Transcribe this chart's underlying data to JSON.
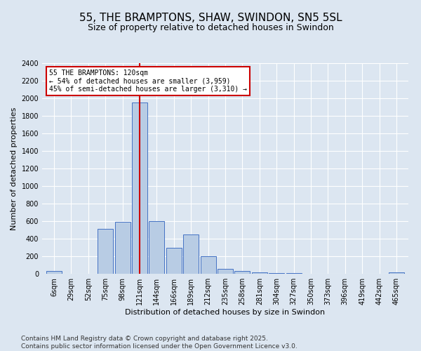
{
  "title": "55, THE BRAMPTONS, SHAW, SWINDON, SN5 5SL",
  "subtitle": "Size of property relative to detached houses in Swindon",
  "xlabel": "Distribution of detached houses by size in Swindon",
  "ylabel": "Number of detached properties",
  "footer_line1": "Contains HM Land Registry data © Crown copyright and database right 2025.",
  "footer_line2": "Contains public sector information licensed under the Open Government Licence v3.0.",
  "categories": [
    "6sqm",
    "29sqm",
    "52sqm",
    "75sqm",
    "98sqm",
    "121sqm",
    "144sqm",
    "166sqm",
    "189sqm",
    "212sqm",
    "235sqm",
    "258sqm",
    "281sqm",
    "304sqm",
    "327sqm",
    "350sqm",
    "373sqm",
    "396sqm",
    "419sqm",
    "442sqm",
    "465sqm"
  ],
  "values": [
    30,
    0,
    0,
    510,
    590,
    1950,
    600,
    300,
    450,
    200,
    60,
    30,
    20,
    10,
    10,
    0,
    0,
    0,
    0,
    0,
    20
  ],
  "bar_color": "#b8cce4",
  "bar_edge_color": "#4472c4",
  "highlight_bar_index": 5,
  "highlight_line_color": "#cc0000",
  "ylim": [
    0,
    2400
  ],
  "yticks": [
    0,
    200,
    400,
    600,
    800,
    1000,
    1200,
    1400,
    1600,
    1800,
    2000,
    2200,
    2400
  ],
  "annotation_box_text": "55 THE BRAMPTONS: 120sqm\n← 54% of detached houses are smaller (3,959)\n45% of semi-detached houses are larger (3,310) →",
  "annotation_box_color": "#cc0000",
  "bg_color": "#dce6f1",
  "plot_bg_color": "#dce6f1",
  "grid_color": "#ffffff",
  "title_fontsize": 11,
  "subtitle_fontsize": 9,
  "axis_label_fontsize": 8,
  "tick_fontsize": 7,
  "annotation_fontsize": 7,
  "footer_fontsize": 6.5
}
